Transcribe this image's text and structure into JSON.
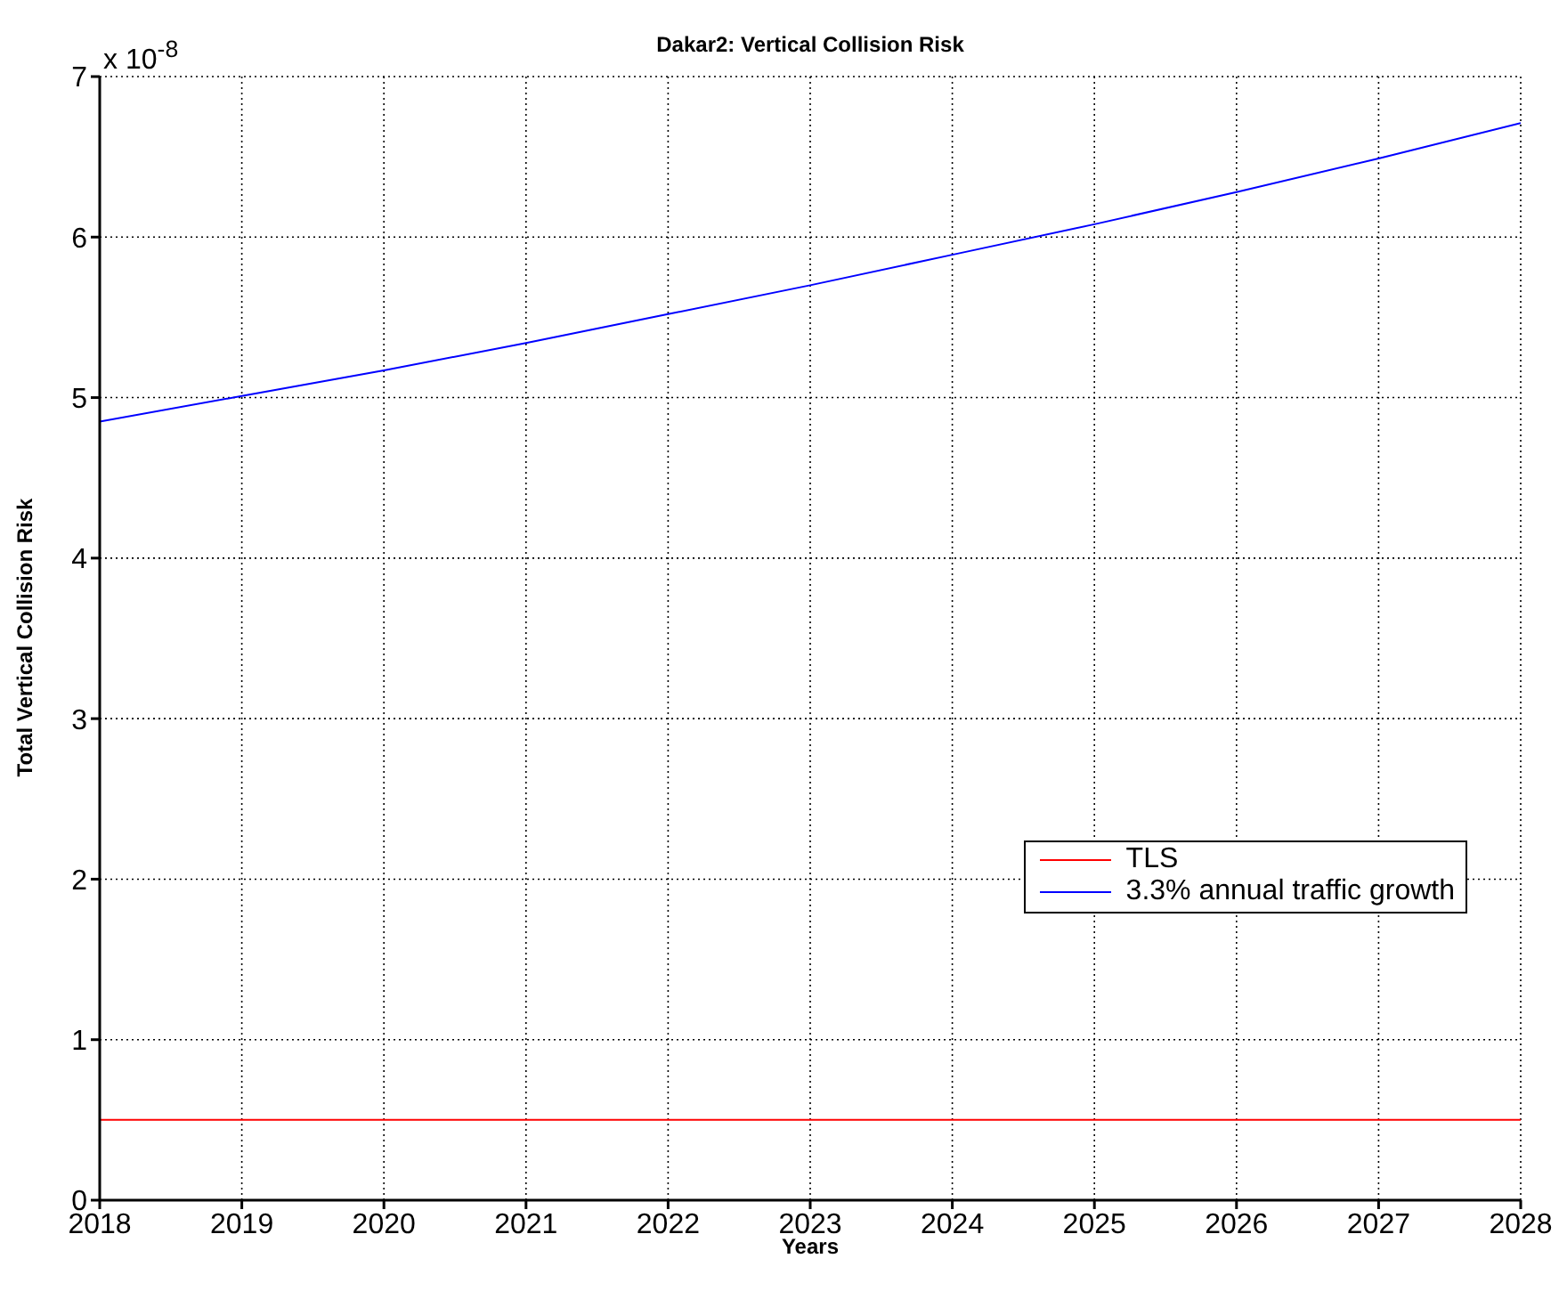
{
  "chart_data": {
    "type": "line",
    "title": "Dakar2: Vertical Collision Risk",
    "xlabel": "Years",
    "ylabel": "Total Vertical Collision Risk",
    "annotations": [
      "x 10$^{-8}$"
    ],
    "series": [
      {
        "name": "TLS",
        "color": "#ff0000",
        "x": [
          2018,
          2028
        ],
        "values": [
          0.5,
          0.5
        ]
      },
      {
        "name": "3.3% annual traffic growth",
        "color": "#0000ff",
        "x": [
          2018,
          2019,
          2020,
          2021,
          2022,
          2023,
          2024,
          2025,
          2026,
          2027,
          2028
        ],
        "values": [
          4.85,
          5.01,
          5.17,
          5.34,
          5.52,
          5.7,
          5.89,
          6.08,
          6.28,
          6.49,
          6.71
        ]
      }
    ],
    "xlim": [
      2018,
      2028
    ],
    "xticks": [
      2018,
      2019,
      2020,
      2021,
      2022,
      2023,
      2024,
      2025,
      2026,
      2027,
      2028
    ],
    "ylim": [
      0,
      7
    ],
    "yticks": [
      0,
      1,
      2,
      3,
      4,
      5,
      6,
      7
    ],
    "grid": true,
    "legend": "bottom right",
    "marker": "none",
    "line_style": "solid"
  }
}
